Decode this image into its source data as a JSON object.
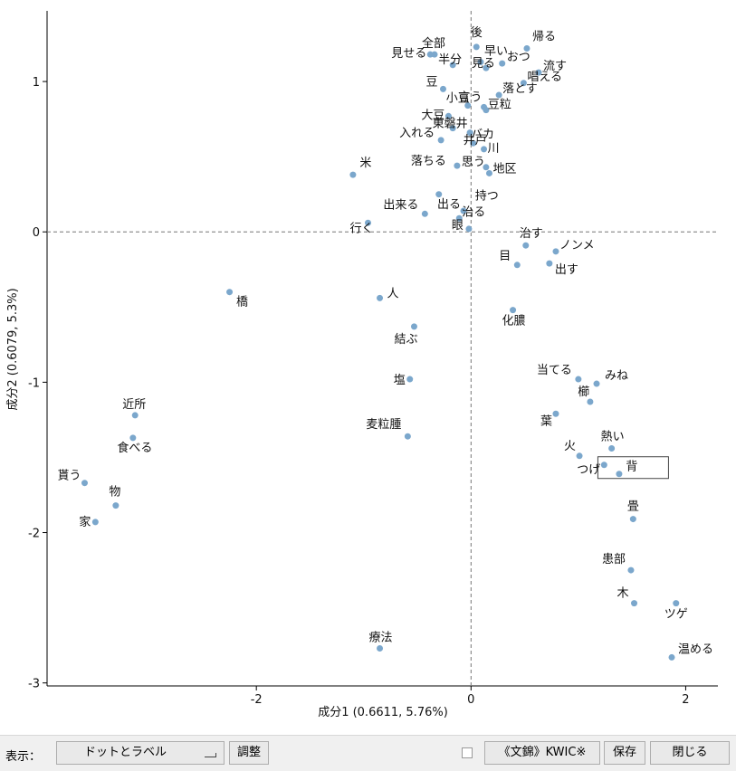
{
  "chart_data": {
    "type": "scatter",
    "xlabel": "成分1 (0.6611, 5.76%)",
    "ylabel": "成分2 (0.6079, 5.3%)",
    "xlim": [
      -3.95,
      2.3
    ],
    "ylim": [
      -3.02,
      1.47
    ],
    "xticks": [
      -2,
      0,
      2
    ],
    "yticks": [
      1,
      0,
      -1,
      -2,
      -3
    ],
    "reference_lines": {
      "x": 0,
      "y": 0
    },
    "point_color": "#7ba7cc",
    "highlighted_label": "背",
    "points": [
      {
        "label": "後",
        "x": 0.05,
        "y": 1.23
      },
      {
        "label": "帰る",
        "x": 0.52,
        "y": 1.22
      },
      {
        "label": "全部",
        "x": -0.34,
        "y": 1.18
      },
      {
        "label": "早い",
        "x": 0.09,
        "y": 1.13
      },
      {
        "label": "半分",
        "x": -0.17,
        "y": 1.11
      },
      {
        "label": "おつ",
        "x": 0.29,
        "y": 1.12
      },
      {
        "label": "見せる",
        "x": -0.38,
        "y": 1.18
      },
      {
        "label": "見る",
        "x": 0.14,
        "y": 1.09
      },
      {
        "label": "流す",
        "x": 0.63,
        "y": 1.06
      },
      {
        "label": "豆",
        "x": -0.26,
        "y": 0.95
      },
      {
        "label": "唱える",
        "x": 0.49,
        "y": 0.99
      },
      {
        "label": "小豆",
        "x": -0.03,
        "y": 0.84
      },
      {
        "label": "落とす",
        "x": 0.26,
        "y": 0.91
      },
      {
        "label": "大豆",
        "x": -0.21,
        "y": 0.77
      },
      {
        "label": "言う",
        "x": 0.12,
        "y": 0.83
      },
      {
        "label": "豆粒",
        "x": 0.14,
        "y": 0.81
      },
      {
        "label": "東磐井",
        "x": -0.17,
        "y": 0.69
      },
      {
        "label": "入れる",
        "x": -0.28,
        "y": 0.61
      },
      {
        "label": "バカ",
        "x": -0.01,
        "y": 0.66
      },
      {
        "label": "井戸",
        "x": 0.02,
        "y": 0.59
      },
      {
        "label": "川",
        "x": 0.12,
        "y": 0.55
      },
      {
        "label": "米",
        "x": -1.1,
        "y": 0.38
      },
      {
        "label": "落ちる",
        "x": -0.13,
        "y": 0.44
      },
      {
        "label": "思う",
        "x": 0.14,
        "y": 0.43
      },
      {
        "label": "地区",
        "x": 0.17,
        "y": 0.39
      },
      {
        "label": "持つ",
        "x": -0.3,
        "y": 0.25
      },
      {
        "label": "出来る",
        "x": -0.43,
        "y": 0.12
      },
      {
        "label": "出る",
        "x": -0.07,
        "y": 0.14
      },
      {
        "label": "治る",
        "x": -0.11,
        "y": 0.09
      },
      {
        "label": "行く",
        "x": -0.96,
        "y": 0.06
      },
      {
        "label": "眼",
        "x": -0.02,
        "y": 0.02
      },
      {
        "label": "治す",
        "x": 0.51,
        "y": -0.09
      },
      {
        "label": "ノンメ",
        "x": 0.79,
        "y": -0.13
      },
      {
        "label": "目",
        "x": 0.43,
        "y": -0.22
      },
      {
        "label": "出す",
        "x": 0.73,
        "y": -0.21
      },
      {
        "label": "橋",
        "x": -2.25,
        "y": -0.4
      },
      {
        "label": "人",
        "x": -0.85,
        "y": -0.44
      },
      {
        "label": "化膿",
        "x": 0.39,
        "y": -0.52
      },
      {
        "label": "結ぶ",
        "x": -0.53,
        "y": -0.63
      },
      {
        "label": "当てる",
        "x": 1.0,
        "y": -0.98
      },
      {
        "label": "みね",
        "x": 1.17,
        "y": -1.01
      },
      {
        "label": "塩",
        "x": -0.57,
        "y": -0.98
      },
      {
        "label": "櫛",
        "x": 1.11,
        "y": -1.13
      },
      {
        "label": "近所",
        "x": -3.13,
        "y": -1.22
      },
      {
        "label": "葉",
        "x": 0.79,
        "y": -1.21
      },
      {
        "label": "麦粒腫",
        "x": -0.59,
        "y": -1.36
      },
      {
        "label": "食べる",
        "x": -3.15,
        "y": -1.37
      },
      {
        "label": "熱い",
        "x": 1.31,
        "y": -1.44
      },
      {
        "label": "火",
        "x": 1.01,
        "y": -1.49
      },
      {
        "label": "背",
        "x": 1.38,
        "y": -1.61
      },
      {
        "label": "つげ",
        "x": 1.24,
        "y": -1.55
      },
      {
        "label": "貰う",
        "x": -3.6,
        "y": -1.67
      },
      {
        "label": "物",
        "x": -3.31,
        "y": -1.82
      },
      {
        "label": "家",
        "x": -3.5,
        "y": -1.93
      },
      {
        "label": "畳",
        "x": 1.51,
        "y": -1.91
      },
      {
        "label": "患部",
        "x": 1.49,
        "y": -2.25
      },
      {
        "label": "木",
        "x": 1.52,
        "y": -2.47
      },
      {
        "label": "ツゲ",
        "x": 1.91,
        "y": -2.47
      },
      {
        "label": "療法",
        "x": -0.85,
        "y": -2.77
      },
      {
        "label": "温める",
        "x": 1.87,
        "y": -2.83
      }
    ]
  },
  "toolbar": {
    "display_label": "表示：",
    "display_value": "ドットとラベル",
    "adjust_button": "調整",
    "kwic_button": "《文錦》KWIC※",
    "save_button": "保存",
    "close_button": "閉じる"
  }
}
